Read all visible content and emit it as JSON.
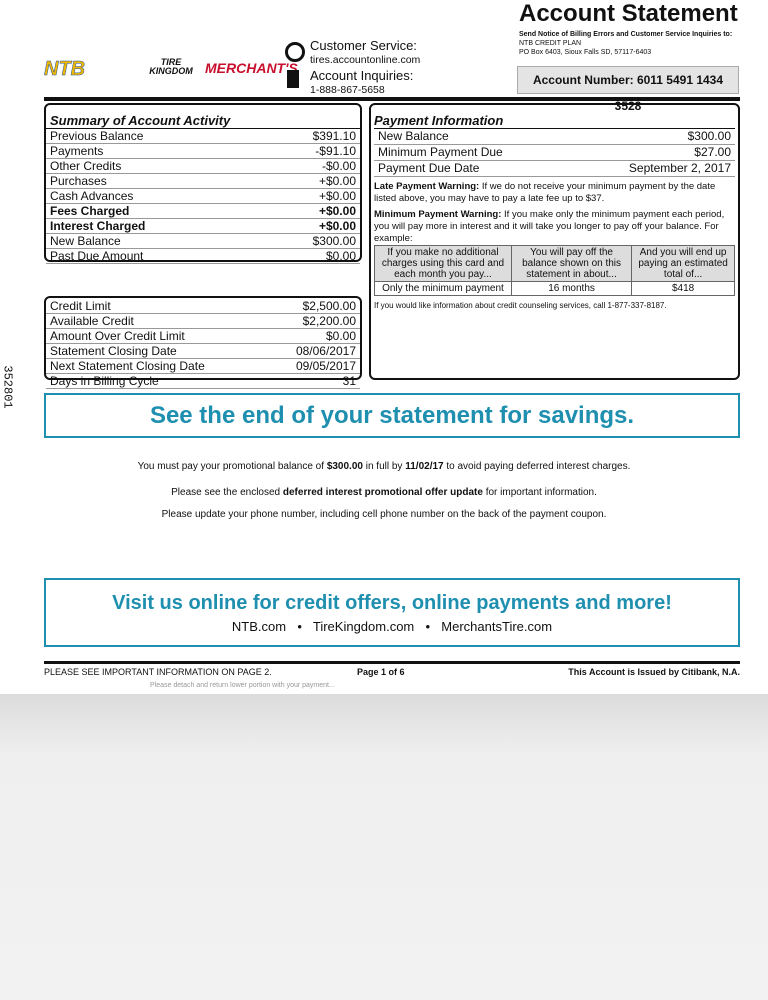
{
  "header": {
    "logos": [
      "NTB",
      "TIRE KINGDOM",
      "MERCHANT'S"
    ],
    "customer_service_label": "Customer Service:",
    "customer_service_url": "tires.accountonline.com",
    "account_inquiries_label": "Account Inquiries:",
    "account_inquiries_phone": "1-888-867-5658",
    "title": "Account Statement",
    "notice": "Send Notice of Billing Errors and Customer Service Inquiries to:",
    "plan": "NTB CREDIT PLAN",
    "address": "PO Box 6403, Sioux Falls SD, 57117-6403",
    "account_number": "Account Number:  6011 5491 1434 3528"
  },
  "side_code": "352801",
  "summary": {
    "title": "Summary of Account Activity",
    "rows": [
      {
        "label": "Previous Balance",
        "value": "$391.10"
      },
      {
        "label": "Payments",
        "value": "-$91.10"
      },
      {
        "label": "Other Credits",
        "value": "-$0.00"
      },
      {
        "label": "Purchases",
        "value": "+$0.00"
      },
      {
        "label": "Cash Advances",
        "value": "+$0.00"
      },
      {
        "label": "Fees Charged",
        "value": "+$0.00",
        "bold": true
      },
      {
        "label": "Interest Charged",
        "value": "+$0.00",
        "bold": true
      },
      {
        "label": "New Balance",
        "value": "$300.00"
      },
      {
        "label": "Past Due Amount",
        "value": "$0.00"
      }
    ]
  },
  "credit": {
    "rows": [
      {
        "label": "Credit Limit",
        "value": "$2,500.00"
      },
      {
        "label": "Available Credit",
        "value": "$2,200.00"
      },
      {
        "label": "Amount Over Credit Limit",
        "value": "$0.00"
      },
      {
        "label": "Statement Closing Date",
        "value": "08/06/2017"
      },
      {
        "label": "Next Statement Closing Date",
        "value": "09/05/2017"
      },
      {
        "label": "Days in Billing Cycle",
        "value": "31"
      }
    ]
  },
  "payment": {
    "title": "Payment Information",
    "rows": [
      {
        "label": "New Balance",
        "value": "$300.00"
      },
      {
        "label": "Minimum Payment Due",
        "value": "$27.00"
      },
      {
        "label": "Payment Due Date",
        "value": "September 2, 2017"
      }
    ],
    "late_label": "Late Payment Warning:",
    "late_text": " If we do not receive your minimum payment by the date listed above, you may have to pay a late fee up to $37.",
    "min_label": "Minimum Payment Warning:",
    "min_text": "  If you make only the minimum payment each period, you will pay more in interest and it will take you longer to pay off your balance. For example:",
    "table": {
      "headers": [
        "If you make no additional charges using this card and each month you pay...",
        "You will pay off the balance shown on this statement in about...",
        "And you will end up paying an estimated total of..."
      ],
      "row": [
        "Only the minimum payment",
        "16 months",
        "$418"
      ]
    },
    "counseling": "If you would like information about credit counseling services, call 1-877-337-8187."
  },
  "banner1": "See the end of your statement for savings.",
  "promo": {
    "line1_a": "You must pay your promotional balance of ",
    "line1_b": "$300.00",
    "line1_c": " in full by ",
    "line1_d": "11/02/17",
    "line1_e": " to avoid paying deferred interest charges.",
    "line2_a": "Please see the enclosed ",
    "line2_b": "deferred interest promotional offer update",
    "line2_c": " for important information.",
    "line3": "Please update your phone number, including cell phone number on the back of the payment coupon."
  },
  "banner2": {
    "title": "Visit us online for credit offers, online payments and more!",
    "sites": [
      "NTB.com",
      "TireKingdom.com",
      "MerchantsTire.com"
    ],
    "sep": "•"
  },
  "footer": {
    "left": "PLEASE SEE IMPORTANT INFORMATION ON PAGE 2.",
    "center": "Page 1 of 6",
    "right": "This Account is Issued by Citibank, N.A.",
    "detach": "Please detach and return lower portion with your payment..."
  },
  "colors": {
    "accent": "#1f8fb0"
  }
}
